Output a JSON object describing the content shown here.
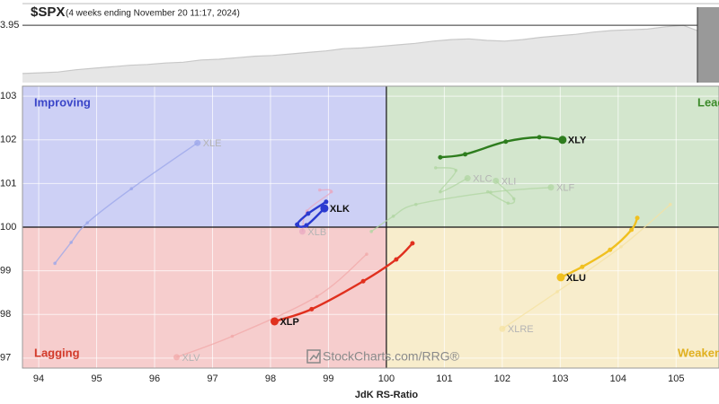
{
  "chart_data": {
    "type": "rrg",
    "title": "$SPX",
    "subtitle": "(4 weeks ending November 20 11:17, 2024)",
    "x_label": "JdK RS-Ratio",
    "watermark": "StockCharts.com/RRG®",
    "overview": {
      "values": [
        12,
        13,
        14,
        17,
        19,
        21,
        23,
        24,
        26,
        27,
        30,
        31,
        33,
        35,
        36,
        38,
        40,
        42,
        45,
        46,
        48,
        50,
        52,
        55,
        57,
        58,
        56,
        55,
        57,
        60,
        62,
        64,
        67,
        69,
        70,
        71,
        74,
        76,
        67,
        71
      ],
      "ylim": [
        0,
        100
      ],
      "yticks": [
        {
          "value": 76,
          "label": "3.95"
        }
      ],
      "color": "#c8c8c8"
    },
    "xlim": [
      93.72,
      105.74
    ],
    "ylim": [
      96.77,
      103.23
    ],
    "xticks": [
      94,
      95,
      96,
      97,
      98,
      99,
      100,
      101,
      102,
      103,
      104,
      105
    ],
    "yticks": [
      97,
      98,
      99,
      100,
      101,
      102,
      103
    ],
    "grid": true,
    "center": [
      100,
      100
    ],
    "quadrants": [
      {
        "name": "Improving",
        "color": "#3a45c8",
        "fill": "#cdd0f5"
      },
      {
        "name": "Leading",
        "color": "#3c8a2a",
        "fill": "#d3e6cd"
      },
      {
        "name": "Lagging",
        "color": "#d23a2a",
        "fill": "#f6cdcd"
      },
      {
        "name": "Weakening",
        "color": "#e0b020",
        "fill": "#f8edcc"
      }
    ],
    "series": [
      {
        "name": "XLE",
        "color": "#9aa6ea",
        "faded": true,
        "x": [
          94.28,
          94.56,
          94.84,
          95.6,
          96.74
        ],
        "y": [
          99.17,
          99.65,
          100.1,
          100.88,
          101.93
        ]
      },
      {
        "name": "XLV",
        "color": "#f2a8a8",
        "faded": true,
        "x": [
          99.66,
          98.8,
          97.34,
          96.38
        ],
        "y": [
          99.38,
          98.41,
          97.5,
          97.02
        ]
      },
      {
        "name": "XLRE",
        "color": "#f6e2a2",
        "faded": true,
        "x": [
          104.9,
          104.05,
          102.95,
          102.0
        ],
        "y": [
          100.52,
          99.55,
          98.52,
          97.67
        ]
      },
      {
        "name": "XLF",
        "color": "#b0d6a2",
        "faded": true,
        "x": [
          99.74,
          100.12,
          100.51,
          101.8,
          102.84
        ],
        "y": [
          99.9,
          100.25,
          100.52,
          100.8,
          100.91
        ]
      },
      {
        "name": "XLC",
        "color": "#b0d6a2",
        "faded": true,
        "x": [
          100.85,
          101.2,
          100.93,
          101.4
        ],
        "y": [
          101.36,
          101.3,
          100.81,
          101.12
        ]
      },
      {
        "name": "XLI",
        "color": "#b0d6a2",
        "faded": true,
        "x": [
          101.75,
          102.1,
          102.2,
          101.89
        ],
        "y": [
          100.81,
          100.55,
          100.65,
          101.06
        ]
      },
      {
        "name": "XLB",
        "color": "#e8a8c0",
        "faded": true,
        "x": [
          98.85,
          99.05,
          98.63,
          98.55
        ],
        "y": [
          100.85,
          100.81,
          100.37,
          99.9
        ]
      },
      {
        "name": "XLY",
        "color": "#2e7d1e",
        "faded": false,
        "x": [
          100.93,
          101.36,
          102.06,
          102.64,
          103.04
        ],
        "y": [
          101.6,
          101.67,
          101.96,
          102.06,
          102.0
        ]
      },
      {
        "name": "XLK",
        "color": "#2a3ad0",
        "faded": false,
        "x": [
          98.96,
          98.65,
          98.46,
          98.62,
          98.93
        ],
        "y": [
          100.58,
          100.31,
          100.06,
          100.04,
          100.43
        ]
      },
      {
        "name": "XLP",
        "color": "#e0301e",
        "faded": false,
        "x": [
          100.45,
          100.17,
          99.6,
          98.71,
          98.07
        ],
        "y": [
          99.63,
          99.26,
          98.76,
          98.12,
          97.84
        ]
      },
      {
        "name": "XLU",
        "color": "#f0c020",
        "faded": false,
        "x": [
          104.33,
          104.23,
          103.86,
          103.38,
          103.01
        ],
        "y": [
          100.21,
          99.94,
          99.48,
          99.09,
          98.85
        ]
      }
    ]
  }
}
